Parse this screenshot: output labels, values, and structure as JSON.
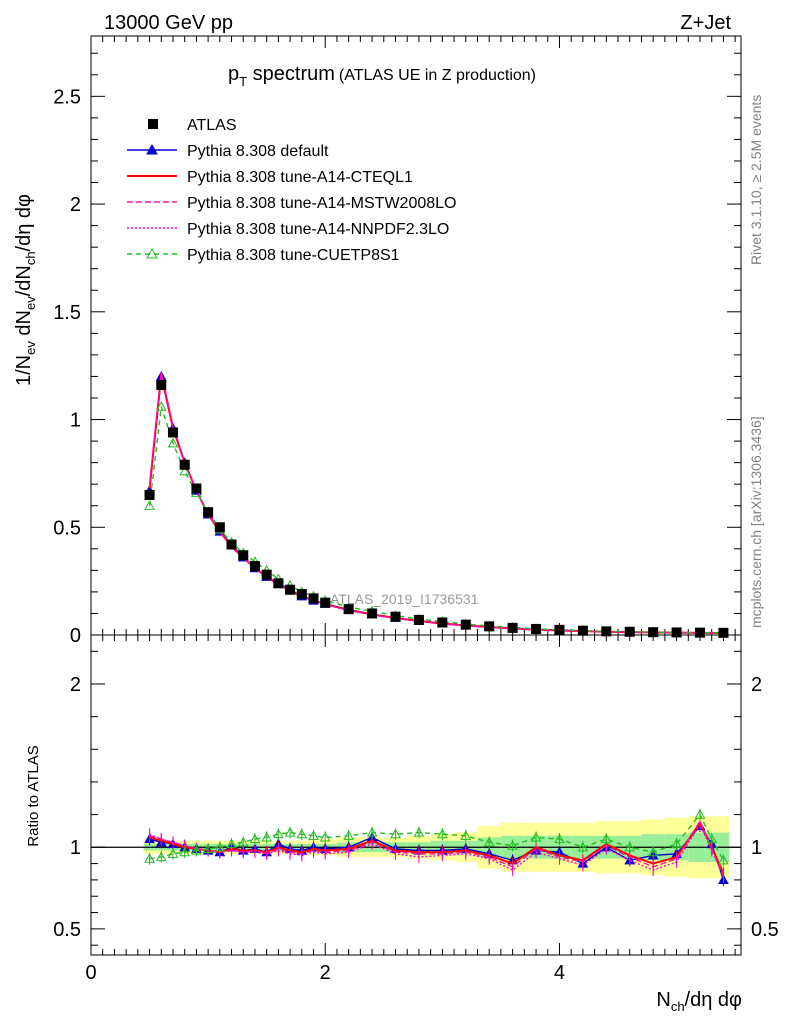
{
  "header": {
    "energy": "13000 GeV pp",
    "process": "Z+Jet"
  },
  "title": {
    "main": "p",
    "main_sub": "T",
    "main_rest": " spectrum",
    "suffix": "(ATLAS UE in Z production)"
  },
  "side_labels": {
    "rivet": "Rivet 3.1.10, ≥ 2.5M events",
    "mcplots": "mcplots.cern.ch [arXiv:1306.3436]"
  },
  "watermark": "ATLAS_2019_I1736531",
  "axes": {
    "ylabel_top": "1/N_ev dN_ev/dN_ch/dη dφ",
    "ylabel_bottom": "Ratio to ATLAS",
    "xlabel": "N_ch/dη dφ"
  },
  "legend": [
    {
      "label": "ATLAS",
      "color": "#000000"
    },
    {
      "label": "Pythia 8.308 default",
      "color": "#0000cc"
    },
    {
      "label": "Pythia 8.308 tune-A14-CTEQL1",
      "color": "#ff0000"
    },
    {
      "label": "Pythia 8.308 tune-A14-MSTW2008LO",
      "color": "#ff1493"
    },
    {
      "label": "Pythia 8.308 tune-A14-NNPDF2.3LO",
      "color": "#ff00cc"
    },
    {
      "label": "Pythia 8.308 tune-CUETP8S1",
      "color": "#22bb22"
    }
  ],
  "chart_data": [
    {
      "type": "scatter",
      "panel": "main",
      "title": "pT spectrum (ATLAS UE in Z production)",
      "xlabel": "N_ch/dη dφ",
      "ylabel": "1/N_ev dN_ev/dN_ch/dη dφ",
      "xlim": [
        0,
        5.55
      ],
      "ylim": [
        0,
        2.78
      ],
      "x_ticks": [
        0,
        2,
        4
      ],
      "y_ticks": [
        0,
        0.5,
        1,
        1.5,
        2,
        2.5
      ],
      "y_tick_labels": [
        "0",
        "0.5",
        "1",
        "1.5",
        "2",
        "2.5"
      ],
      "x": [
        0.5,
        0.6,
        0.7,
        0.8,
        0.9,
        1.0,
        1.1,
        1.2,
        1.3,
        1.4,
        1.5,
        1.6,
        1.7,
        1.8,
        1.9,
        2.0,
        2.2,
        2.4,
        2.6,
        2.8,
        3.0,
        3.2,
        3.4,
        3.6,
        3.8,
        4.0,
        4.2,
        4.4,
        4.6,
        4.8,
        5.0,
        5.2,
        5.4
      ],
      "series": [
        {
          "name": "ATLAS",
          "values": [
            0.65,
            1.16,
            0.94,
            0.79,
            0.68,
            0.57,
            0.5,
            0.42,
            0.37,
            0.32,
            0.28,
            0.24,
            0.21,
            0.19,
            0.17,
            0.15,
            0.12,
            0.1,
            0.085,
            0.07,
            0.058,
            0.048,
            0.04,
            0.033,
            0.028,
            0.024,
            0.02,
            0.017,
            0.015,
            0.013,
            0.012,
            0.011,
            0.01
          ]
        },
        {
          "name": "Pythia 8.308 default",
          "values": [
            0.67,
            1.2,
            0.96,
            0.8,
            0.67,
            0.56,
            0.48,
            0.42,
            0.36,
            0.31,
            0.27,
            0.24,
            0.21,
            0.18,
            0.16,
            0.145,
            0.118,
            0.097,
            0.08,
            0.066,
            0.054,
            0.045,
            0.038,
            0.031,
            0.026,
            0.022,
            0.018,
            0.016,
            0.014,
            0.012,
            0.011,
            0.01,
            0.009
          ]
        },
        {
          "name": "Pythia 8.308 tune-A14-CTEQL1",
          "values": [
            0.68,
            1.21,
            0.96,
            0.8,
            0.67,
            0.56,
            0.48,
            0.41,
            0.36,
            0.31,
            0.27,
            0.235,
            0.205,
            0.18,
            0.16,
            0.143,
            0.116,
            0.095,
            0.079,
            0.065,
            0.053,
            0.044,
            0.037,
            0.03,
            0.025,
            0.021,
            0.018,
            0.015,
            0.013,
            0.012,
            0.011,
            0.01,
            0.009
          ]
        },
        {
          "name": "Pythia 8.308 tune-A14-MSTW2008LO",
          "values": [
            0.69,
            1.22,
            0.97,
            0.8,
            0.67,
            0.56,
            0.48,
            0.41,
            0.36,
            0.31,
            0.27,
            0.235,
            0.205,
            0.18,
            0.16,
            0.142,
            0.115,
            0.094,
            0.078,
            0.064,
            0.052,
            0.043,
            0.036,
            0.03,
            0.025,
            0.021,
            0.018,
            0.015,
            0.013,
            0.012,
            0.011,
            0.01,
            0.009
          ]
        },
        {
          "name": "Pythia 8.308 tune-A14-NNPDF2.3LO",
          "values": [
            0.7,
            1.22,
            0.97,
            0.8,
            0.67,
            0.56,
            0.48,
            0.41,
            0.36,
            0.31,
            0.27,
            0.235,
            0.205,
            0.18,
            0.16,
            0.141,
            0.114,
            0.093,
            0.077,
            0.063,
            0.052,
            0.043,
            0.036,
            0.03,
            0.025,
            0.021,
            0.018,
            0.015,
            0.013,
            0.012,
            0.011,
            0.01,
            0.009
          ]
        },
        {
          "name": "Pythia 8.308 tune-CUETP8S1",
          "values": [
            0.6,
            1.06,
            0.89,
            0.76,
            0.66,
            0.57,
            0.49,
            0.43,
            0.38,
            0.34,
            0.3,
            0.26,
            0.23,
            0.2,
            0.18,
            0.16,
            0.13,
            0.11,
            0.09,
            0.074,
            0.062,
            0.051,
            0.042,
            0.035,
            0.029,
            0.024,
            0.02,
            0.017,
            0.015,
            0.013,
            0.012,
            0.011,
            0.01
          ]
        }
      ]
    },
    {
      "type": "line",
      "panel": "ratio",
      "ylabel": "Ratio to ATLAS",
      "xlabel": "N_ch/dη dφ",
      "xlim": [
        0,
        5.55
      ],
      "ylim": [
        0.34,
        2.3
      ],
      "x_ticks": [
        0,
        2,
        4
      ],
      "x_tick_labels": [
        "0",
        "2",
        "4"
      ],
      "y_ticks": [
        0.5,
        1,
        2
      ],
      "y_tick_labels": [
        "0.5",
        "1",
        "2"
      ],
      "x": [
        0.5,
        0.6,
        0.7,
        0.8,
        0.9,
        1.0,
        1.1,
        1.2,
        1.3,
        1.4,
        1.5,
        1.6,
        1.7,
        1.8,
        1.9,
        2.0,
        2.2,
        2.4,
        2.6,
        2.8,
        3.0,
        3.2,
        3.4,
        3.6,
        3.8,
        4.0,
        4.2,
        4.4,
        4.6,
        4.8,
        5.0,
        5.2,
        5.3,
        5.4
      ],
      "band_green_halfwidth": [
        0.02,
        0.02,
        0.02,
        0.02,
        0.02,
        0.02,
        0.02,
        0.02,
        0.02,
        0.02,
        0.02,
        0.02,
        0.02,
        0.02,
        0.02,
        0.02,
        0.03,
        0.03,
        0.03,
        0.03,
        0.04,
        0.04,
        0.06,
        0.07,
        0.07,
        0.07,
        0.07,
        0.07,
        0.07,
        0.08,
        0.08,
        0.09,
        0.09,
        0.09
      ],
      "band_yellow_halfwidth": [
        0.04,
        0.04,
        0.04,
        0.04,
        0.04,
        0.04,
        0.04,
        0.04,
        0.04,
        0.04,
        0.04,
        0.04,
        0.04,
        0.04,
        0.05,
        0.05,
        0.06,
        0.06,
        0.06,
        0.07,
        0.08,
        0.09,
        0.13,
        0.15,
        0.15,
        0.15,
        0.15,
        0.16,
        0.16,
        0.17,
        0.18,
        0.19,
        0.19,
        0.19
      ],
      "series": [
        {
          "name": "Pythia 8.308 default",
          "values": [
            1.05,
            1.03,
            1.02,
            1.0,
            0.99,
            0.98,
            0.97,
            1.0,
            0.98,
            0.99,
            0.97,
            1.02,
            0.99,
            0.98,
            1.0,
            0.99,
            1.0,
            1.06,
            0.99,
            0.98,
            0.98,
            0.99,
            0.96,
            0.92,
            0.98,
            0.97,
            0.9,
            1.0,
            0.92,
            0.95,
            0.96,
            1.13,
            1.02,
            0.8
          ]
        },
        {
          "name": "Pythia 8.308 tune-A14-CTEQL1",
          "values": [
            1.06,
            1.04,
            1.02,
            1.0,
            0.99,
            0.98,
            0.97,
            0.99,
            0.98,
            0.98,
            0.97,
            1.0,
            0.98,
            0.97,
            0.99,
            0.98,
            0.99,
            1.04,
            0.98,
            0.97,
            0.97,
            0.98,
            0.95,
            0.9,
            1.0,
            0.95,
            0.92,
            1.02,
            0.95,
            0.9,
            0.94,
            1.15,
            1.0,
            0.84
          ]
        },
        {
          "name": "Pythia 8.308 tune-A14-MSTW2008LO",
          "values": [
            1.07,
            1.05,
            1.03,
            1.01,
            0.99,
            0.98,
            0.97,
            0.98,
            0.97,
            0.98,
            0.96,
            0.99,
            0.97,
            0.96,
            0.98,
            0.97,
            0.98,
            1.03,
            0.97,
            0.96,
            0.96,
            0.97,
            0.94,
            0.88,
            0.99,
            0.94,
            0.91,
            1.01,
            0.94,
            0.88,
            0.93,
            1.16,
            0.99,
            0.82
          ]
        },
        {
          "name": "Pythia 8.308 tune-A14-NNPDF2.3LO",
          "values": [
            1.08,
            1.05,
            1.03,
            1.01,
            0.99,
            0.98,
            0.97,
            0.98,
            0.97,
            0.97,
            0.96,
            0.98,
            0.96,
            0.95,
            0.97,
            0.96,
            0.97,
            1.02,
            0.96,
            0.94,
            0.95,
            0.96,
            0.93,
            0.86,
            0.97,
            0.93,
            0.89,
            0.99,
            0.92,
            0.86,
            0.91,
            1.14,
            0.98,
            0.83
          ]
        },
        {
          "name": "Pythia 8.308 tune-CUETP8S1",
          "values": [
            0.93,
            0.94,
            0.96,
            0.97,
            0.98,
            0.99,
            1.0,
            1.02,
            1.03,
            1.05,
            1.06,
            1.08,
            1.09,
            1.08,
            1.07,
            1.06,
            1.07,
            1.09,
            1.08,
            1.09,
            1.08,
            1.07,
            1.03,
            1.01,
            1.06,
            1.05,
            1.0,
            1.05,
            1.0,
            0.97,
            1.02,
            1.2,
            1.05,
            0.92
          ]
        }
      ]
    }
  ]
}
